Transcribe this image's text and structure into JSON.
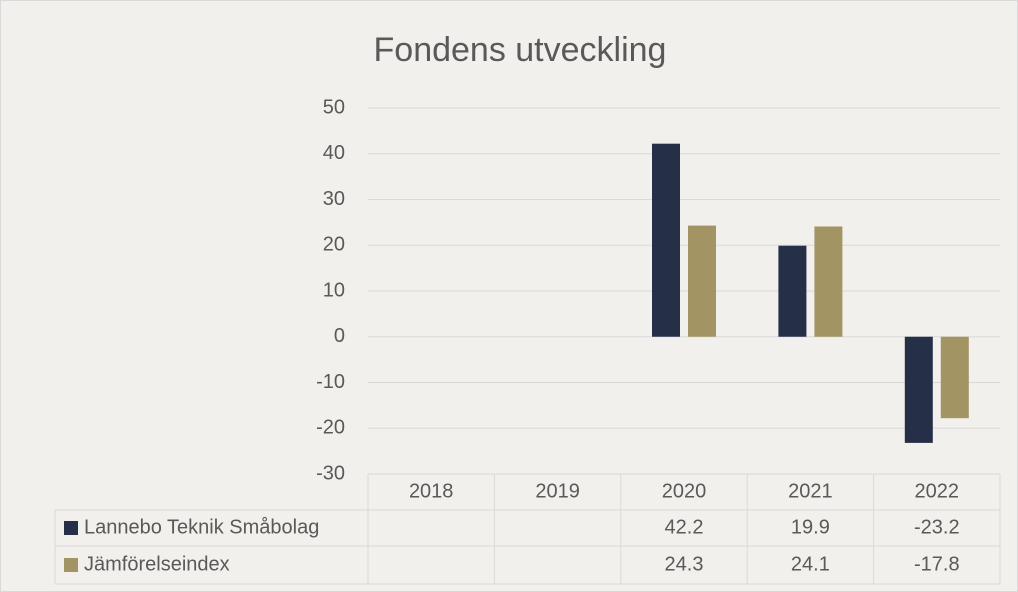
{
  "chart_data": {
    "type": "bar",
    "title": "Fondens utveckling",
    "categories": [
      "2018",
      "2019",
      "2020",
      "2021",
      "2022"
    ],
    "series": [
      {
        "name": "Lannebo Teknik Småbolag",
        "color": "#253048",
        "values": [
          null,
          null,
          42.2,
          19.9,
          -23.2
        ]
      },
      {
        "name": "Jämförelseindex",
        "color": "#a39563",
        "values": [
          null,
          null,
          24.3,
          24.1,
          -17.8
        ]
      }
    ],
    "ylim": [
      -30,
      50
    ],
    "yticks": [
      -30,
      -20,
      -10,
      0,
      10,
      20,
      30,
      40,
      50
    ],
    "grid": true,
    "data_table": true
  }
}
